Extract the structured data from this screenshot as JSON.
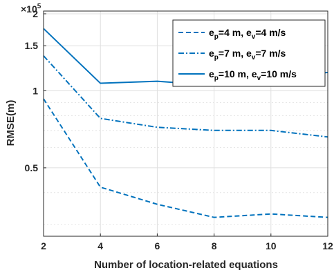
{
  "chart_data": {
    "type": "line",
    "xlabel": "Number of location-related equations",
    "ylabel": "RMSE(m)",
    "y_multiplier_label": "×10",
    "y_multiplier_exp": "5",
    "y_scale": "log",
    "xlim": [
      2,
      12
    ],
    "ylim": [
      0.27,
      2.05
    ],
    "x_ticks": [
      2,
      4,
      6,
      8,
      10,
      12
    ],
    "y_ticks": [
      0.5,
      1,
      1.5,
      2
    ],
    "y_tick_labels": [
      "0.5",
      "1",
      "1.5",
      "2"
    ],
    "grid": true,
    "legend_position": "top-right",
    "line_color": "#0072BD",
    "x": [
      2,
      4,
      6,
      8,
      10,
      12
    ],
    "series": [
      {
        "name_parts": [
          "e",
          "p",
          "=4 m, e",
          "v",
          "=4 m/s"
        ],
        "style": "dashed",
        "values": [
          0.93,
          0.42,
          0.36,
          0.32,
          0.33,
          0.32
        ]
      },
      {
        "name_parts": [
          "e",
          "p",
          "=7 m, e",
          "v",
          "=7 m/s"
        ],
        "style": "dashdot",
        "values": [
          1.37,
          0.78,
          0.72,
          0.7,
          0.7,
          0.66
        ]
      },
      {
        "name_parts": [
          "e",
          "p",
          "=10 m, e",
          "v",
          "=10 m/s"
        ],
        "style": "solid",
        "values": [
          1.75,
          1.07,
          1.09,
          1.05,
          1.12,
          1.18
        ]
      }
    ]
  }
}
